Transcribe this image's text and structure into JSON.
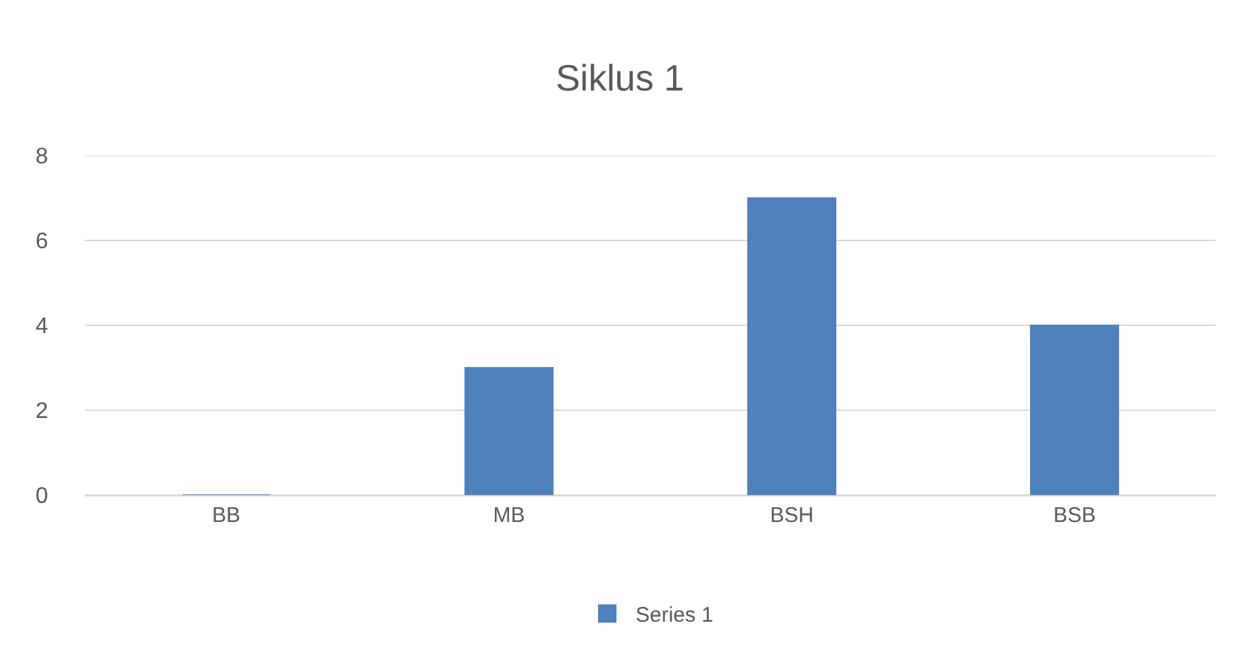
{
  "chart_data": {
    "type": "bar",
    "title": "Siklus 1",
    "categories": [
      "BB",
      "MB",
      "BSH",
      "BSB"
    ],
    "series": [
      {
        "name": "Series 1",
        "color": "#4f81bd",
        "values": [
          0,
          3,
          7,
          4
        ]
      }
    ],
    "ylim": [
      0,
      8
    ],
    "yticks": [
      0,
      2,
      4,
      6,
      8
    ],
    "grid": "y",
    "legend": "bottom"
  }
}
